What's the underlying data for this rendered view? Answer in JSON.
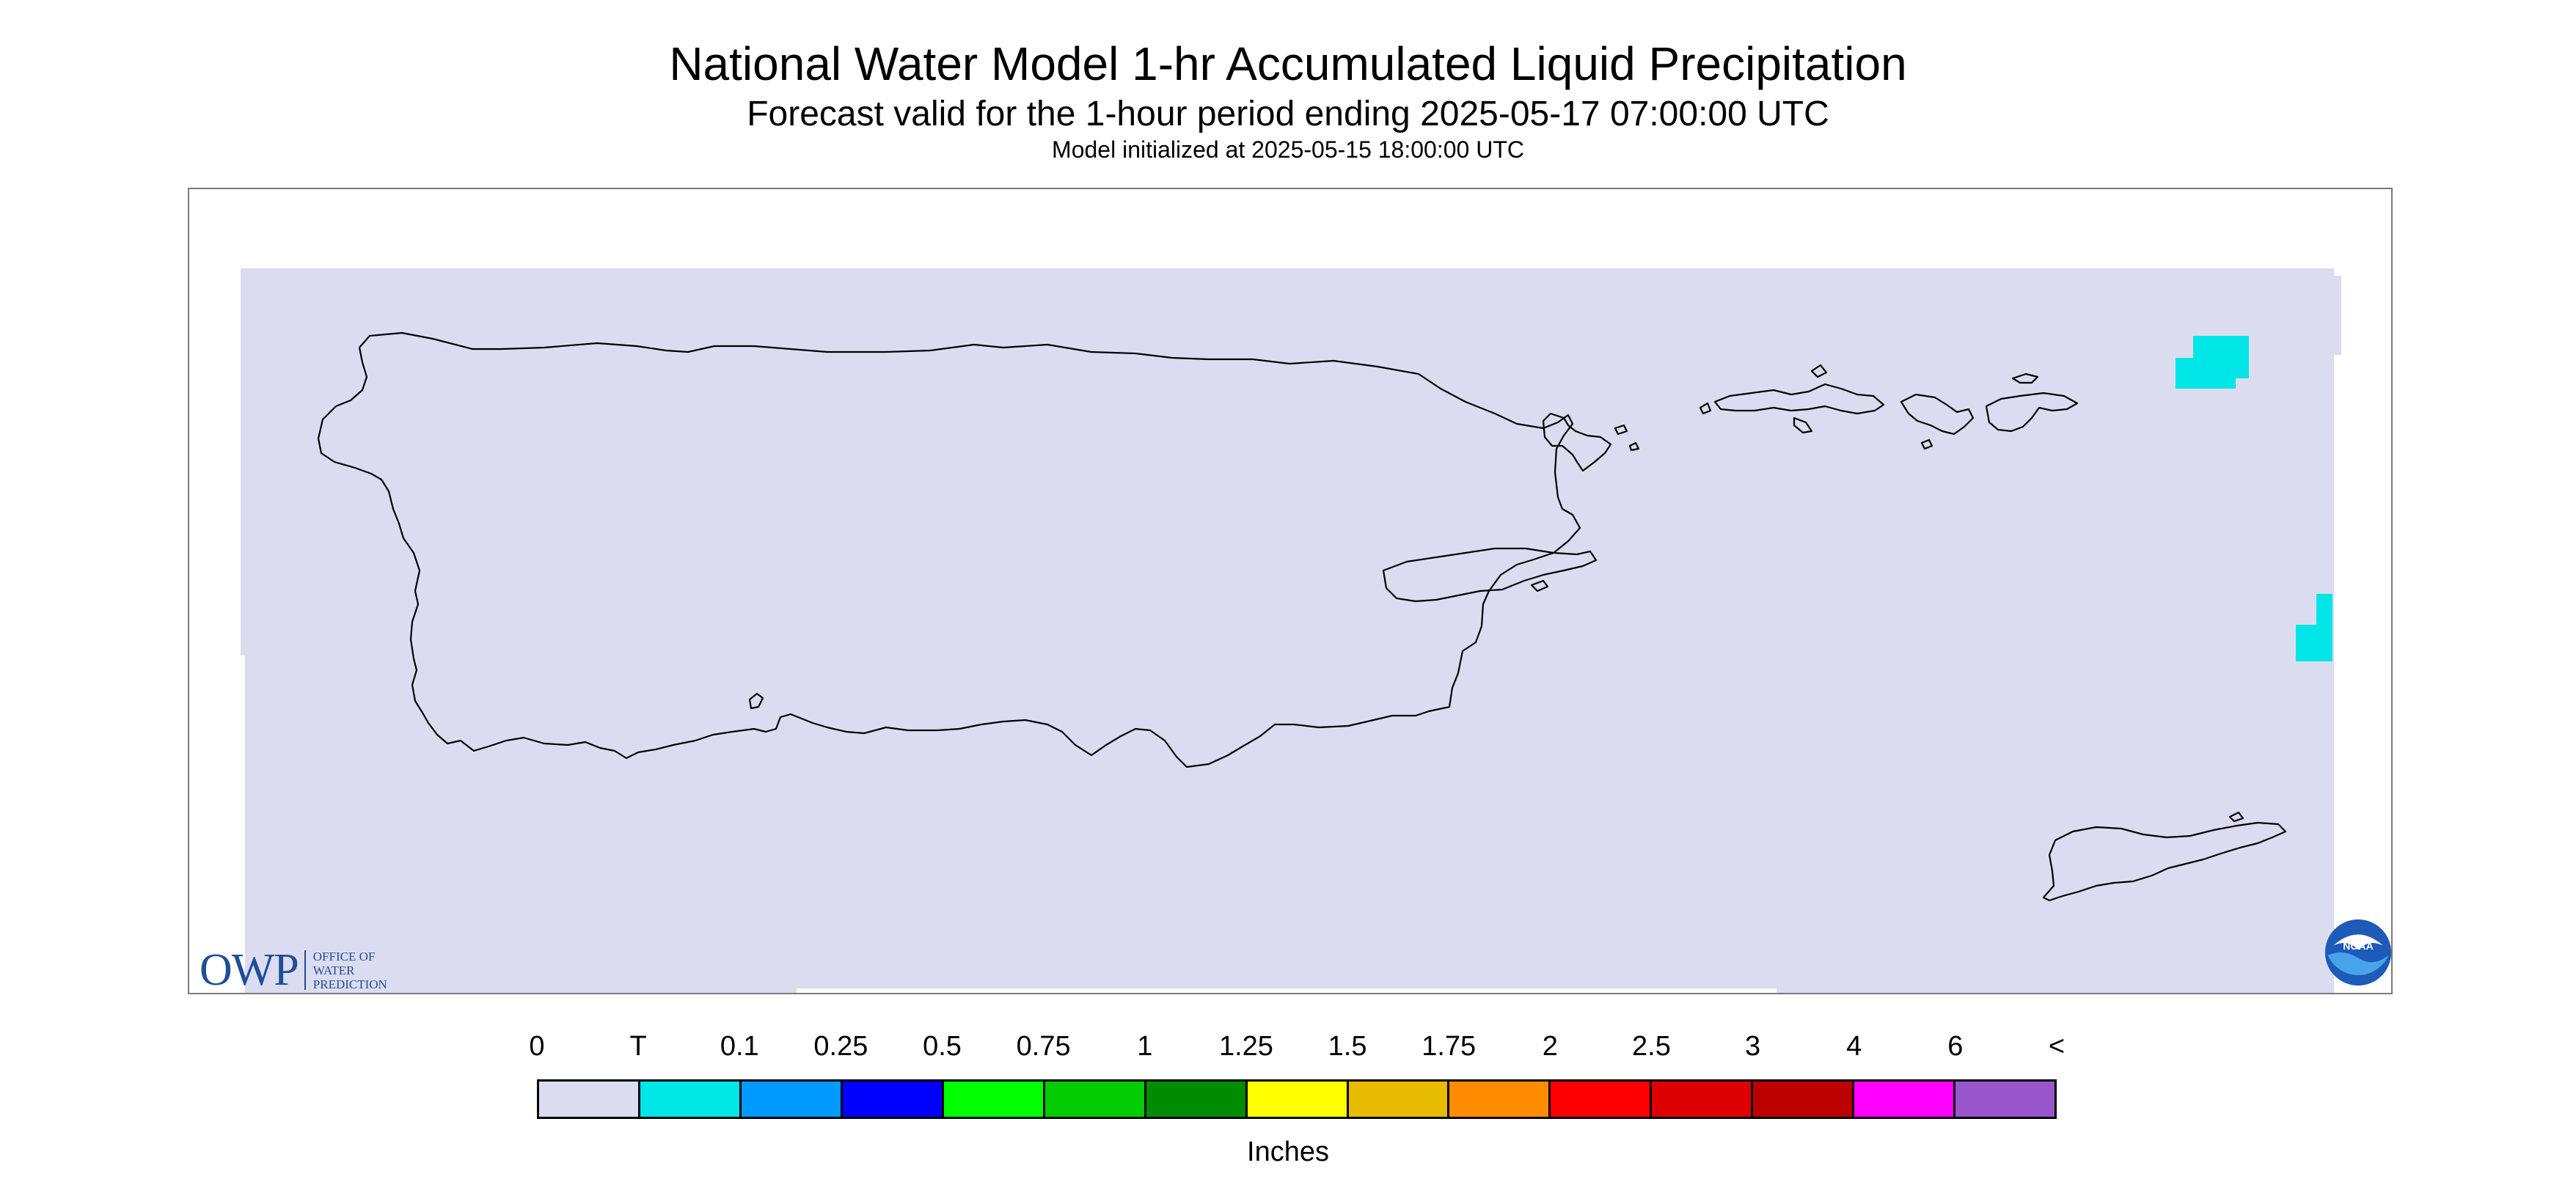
{
  "titles": {
    "main": "National Water Model 1-hr Accumulated Liquid Precipitation",
    "valid": "Forecast valid for the 1-hour period ending 2025-05-17 07:00:00 UTC",
    "init": "Model initialized at 2025-05-15 18:00:00 UTC"
  },
  "colors": {
    "background_precip_zero": "#dcdcf0",
    "outline": "#000000",
    "trace": "#00e6e6"
  },
  "legend": {
    "labels": [
      "0",
      "T",
      "0.1",
      "0.25",
      "0.5",
      "0.75",
      "1",
      "1.25",
      "1.5",
      "1.75",
      "2",
      "2.5",
      "3",
      "4",
      "6",
      "<"
    ],
    "colors": [
      "#dcdcf0",
      "#00e6e6",
      "#0099ff",
      "#0000ff",
      "#00ff00",
      "#00cc00",
      "#008c00",
      "#ffff00",
      "#e6bb00",
      "#ff8c00",
      "#ff0000",
      "#dd0000",
      "#bb0000",
      "#ff00ff",
      "#9955cc"
    ],
    "units": "Inches"
  },
  "logos": {
    "owp_mark": "OWP",
    "owp_lines": [
      "OFFICE OF",
      "WATER",
      "PREDICTION"
    ],
    "noaa": "NOAA"
  },
  "regions": [
    "Puerto Rico",
    "Vieques",
    "Culebra",
    "St. Thomas",
    "St. John",
    "St. Croix"
  ]
}
